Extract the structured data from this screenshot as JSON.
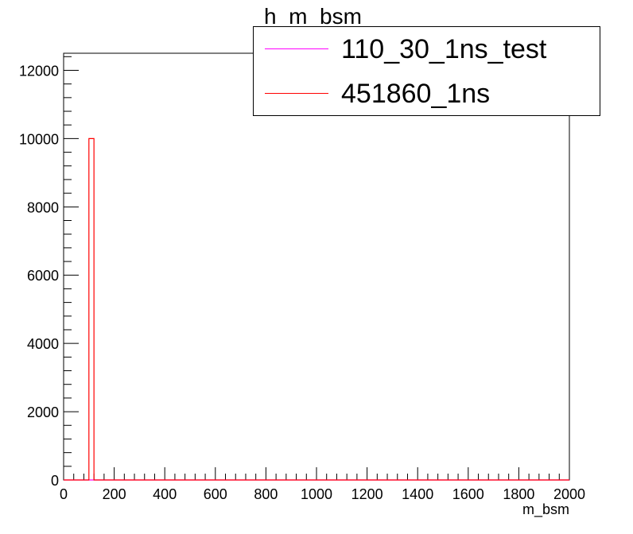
{
  "chart_data": {
    "type": "bar",
    "title": "h_m_bsm",
    "xlabel": "m_bsm",
    "ylabel": "",
    "xlim": [
      0,
      2000
    ],
    "ylim": [
      0,
      12500
    ],
    "x_ticks": [
      0,
      200,
      400,
      600,
      800,
      1000,
      1200,
      1400,
      1600,
      1800,
      2000
    ],
    "y_ticks": [
      0,
      2000,
      4000,
      6000,
      8000,
      10000,
      12000
    ],
    "bin_width": 20,
    "grid": false,
    "legend_position": "top-right",
    "series": [
      {
        "name": "110_30_1ns_test",
        "color": "#ff00ff",
        "bins": []
      },
      {
        "name": "451860_1ns",
        "color": "#ff0000",
        "bins": [
          {
            "x_low": 100,
            "x_high": 120,
            "count": 10000
          }
        ]
      }
    ]
  }
}
